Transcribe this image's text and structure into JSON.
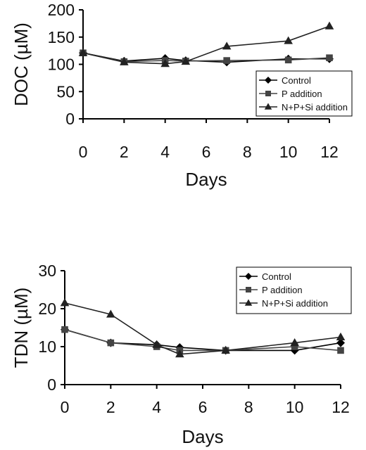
{
  "chart_data": [
    {
      "type": "line",
      "ylabel": "DOC (µM)",
      "xlabel": "Days",
      "ylim": [
        0,
        200
      ],
      "xlim": [
        0,
        12
      ],
      "yticks": [
        0,
        50,
        100,
        150,
        200
      ],
      "xticks": [
        0,
        2,
        4,
        6,
        8,
        10,
        12
      ],
      "legend": "bottom-right",
      "grid": false,
      "x": [
        0,
        2,
        4,
        5,
        7,
        10,
        12
      ],
      "series": [
        {
          "name": "Control",
          "marker": "diamond",
          "color": "#000000",
          "values": [
            121,
            106,
            111,
            107,
            104,
            110,
            110
          ]
        },
        {
          "name": "P addition",
          "marker": "square",
          "color": "#444444",
          "values": [
            121,
            105,
            107,
            106,
            107,
            108,
            112
          ]
        },
        {
          "name": "N+P+Si addition",
          "marker": "triangle",
          "color": "#222222",
          "values": [
            121,
            104,
            101,
            105,
            133,
            143,
            170
          ]
        }
      ]
    },
    {
      "type": "line",
      "ylabel": "TDN (µM)",
      "xlabel": "Days",
      "ylim": [
        0,
        30
      ],
      "xlim": [
        0,
        12
      ],
      "yticks": [
        0,
        10,
        20,
        30
      ],
      "xticks": [
        0,
        2,
        4,
        6,
        8,
        10,
        12
      ],
      "legend": "top-right",
      "grid": false,
      "x": [
        0,
        2,
        4,
        5,
        7,
        10,
        12
      ],
      "series": [
        {
          "name": "Control",
          "marker": "diamond",
          "color": "#000000",
          "values": [
            14.5,
            11,
            10.5,
            9.8,
            9,
            9,
            11
          ]
        },
        {
          "name": "P addition",
          "marker": "square",
          "color": "#444444",
          "values": [
            14.5,
            11,
            10,
            9,
            9,
            10,
            9
          ]
        },
        {
          "name": "N+P+Si addition",
          "marker": "triangle",
          "color": "#222222",
          "values": [
            21.5,
            18.5,
            10.5,
            8,
            9,
            11,
            12.5
          ]
        }
      ]
    }
  ]
}
